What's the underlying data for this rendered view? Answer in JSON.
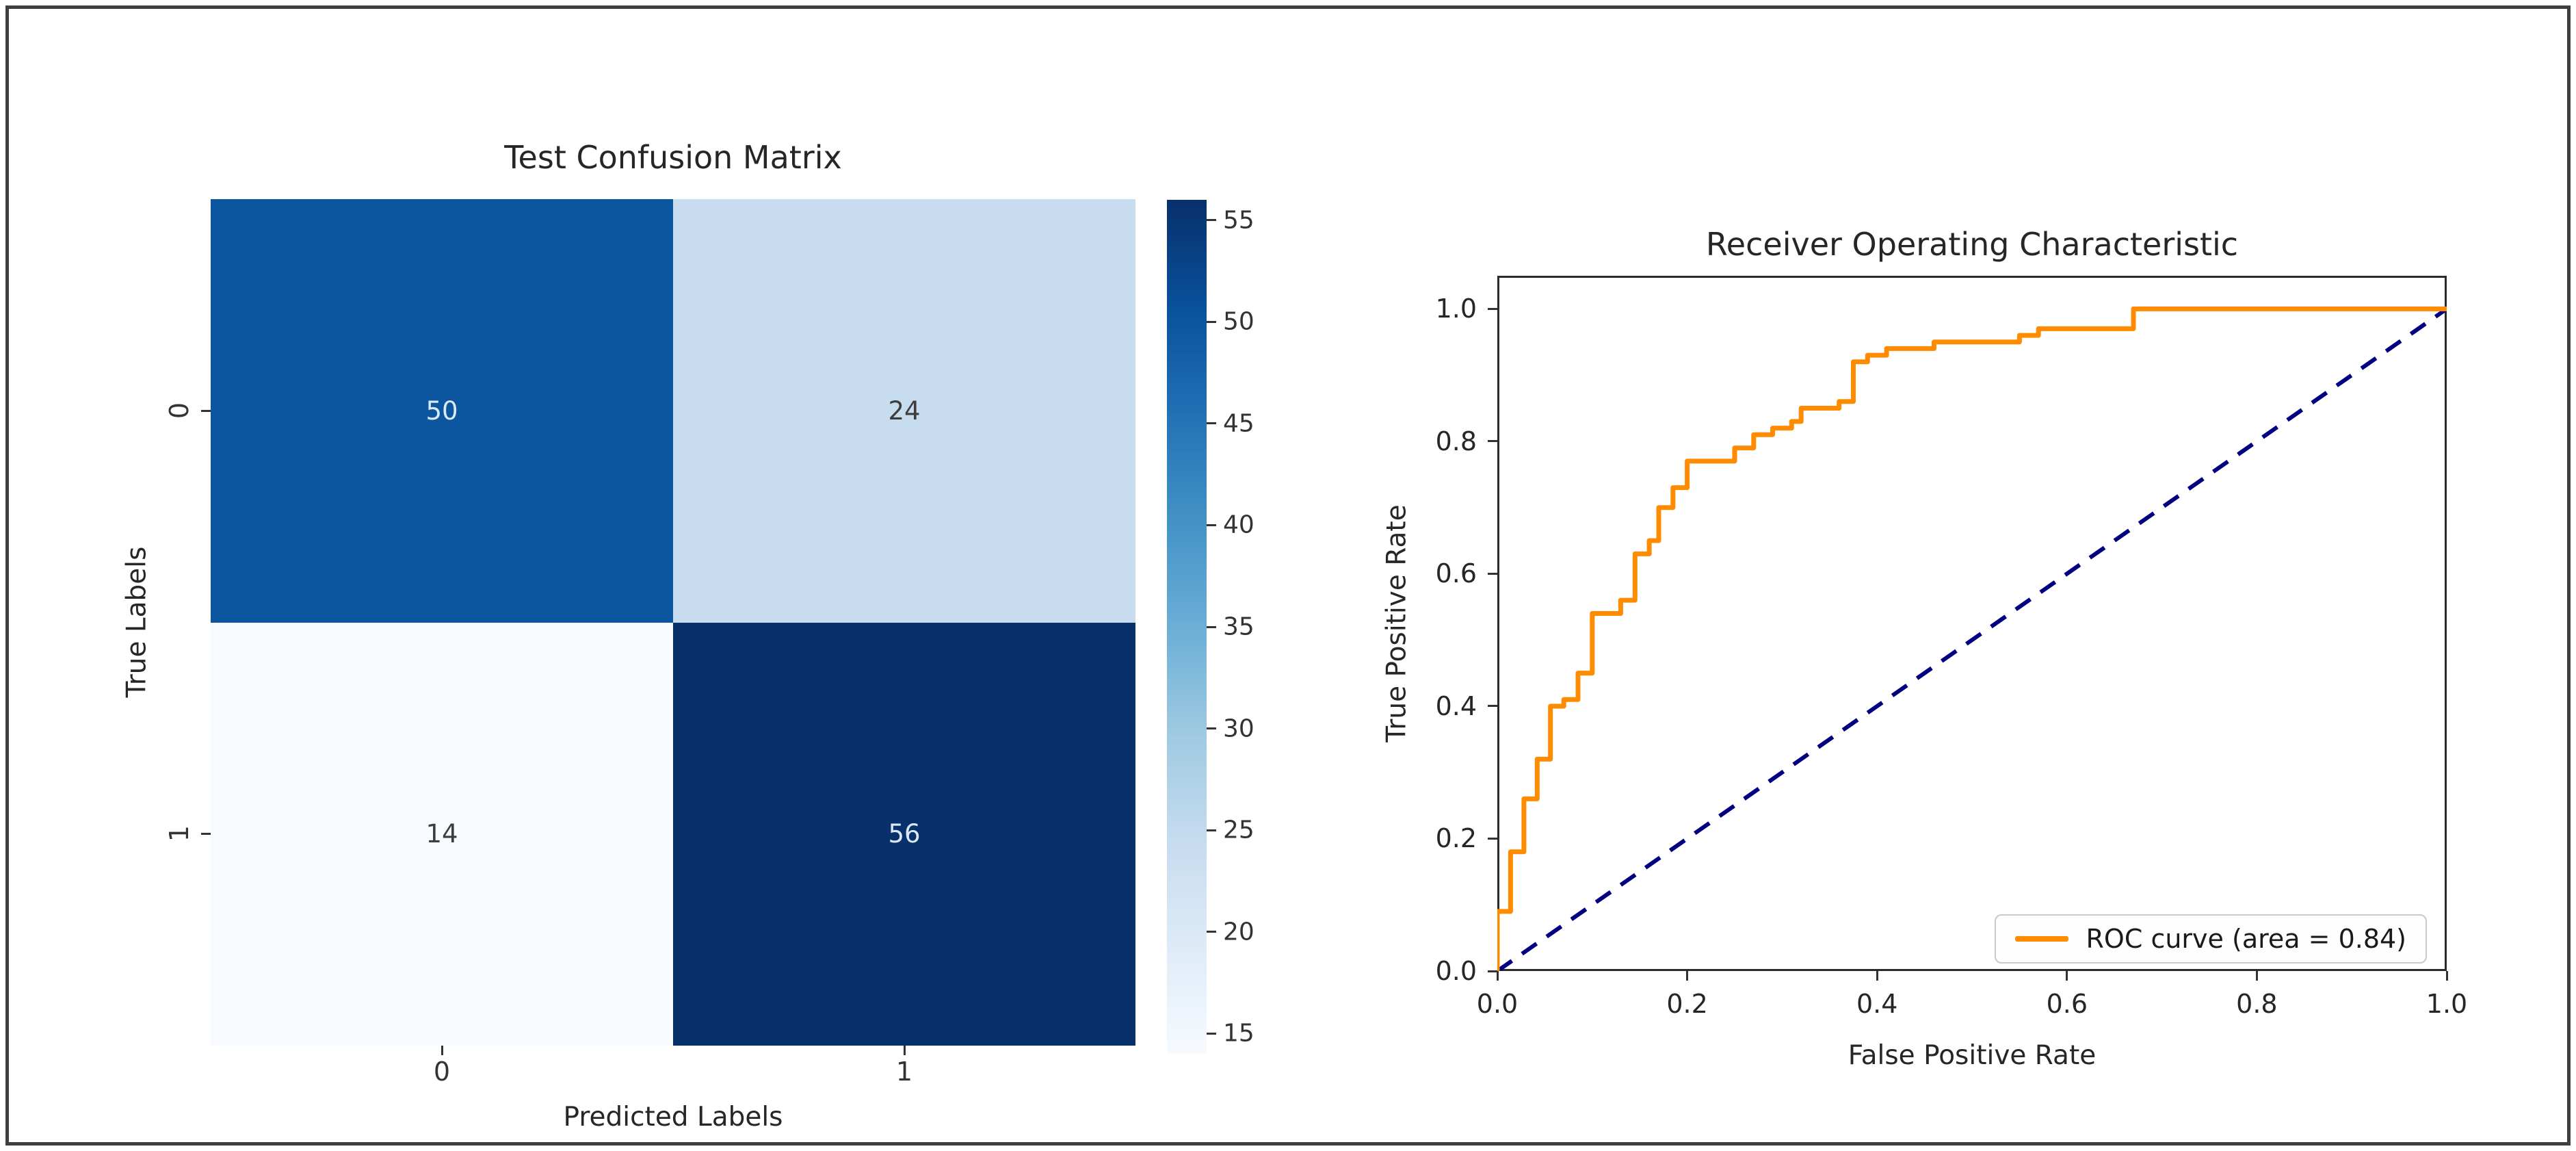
{
  "figure": {
    "background": "#ffffff",
    "border_color": "#3f3f3f"
  },
  "chart_data": [
    {
      "type": "heatmap",
      "title": "Test Confusion Matrix",
      "xlabel": "Predicted Labels",
      "ylabel": "True Labels",
      "x_categories": [
        "0",
        "1"
      ],
      "y_categories": [
        "0",
        "1"
      ],
      "values": [
        [
          50,
          24
        ],
        [
          14,
          56
        ]
      ],
      "cells": [
        {
          "value": "50",
          "bg": "#0c56a0",
          "fg": "#dbe9f6"
        },
        {
          "value": "24",
          "bg": "#c8dcf0",
          "fg": "#3d3d3d"
        },
        {
          "value": "14",
          "bg": "#f7fbff",
          "fg": "#3d3d3d"
        },
        {
          "value": "56",
          "bg": "#08306b",
          "fg": "#dbe9f6"
        }
      ],
      "colormap": "Blues",
      "grid": false,
      "colorbar": {
        "vmin": 14,
        "vmax": 56,
        "ticks": [
          15,
          20,
          25,
          30,
          35,
          40,
          45,
          50,
          55
        ],
        "gradient_stops": [
          "#f7fbff",
          "#deebf7",
          "#c6dbef",
          "#9ecae1",
          "#6baed6",
          "#4292c6",
          "#2171b5",
          "#08519c",
          "#08306b"
        ]
      }
    },
    {
      "type": "line",
      "title": "Receiver Operating Characteristic",
      "xlabel": "False Positive Rate",
      "ylabel": "True Positive Rate",
      "xlim": [
        0,
        1
      ],
      "ylim": [
        0,
        1.05
      ],
      "xticks": [
        0,
        0.2,
        0.4,
        0.6,
        0.8,
        1
      ],
      "yticks": [
        0,
        0.2,
        0.4,
        0.6,
        0.8,
        1
      ],
      "grid": false,
      "legend_position": "lower right",
      "auc": 0.84,
      "series": [
        {
          "name": "ROC curve (area = 0.84)",
          "color": "#ff8c00",
          "style": "step",
          "points": [
            [
              0,
              0
            ],
            [
              0,
              0.09
            ],
            [
              0.014,
              0.09
            ],
            [
              0.014,
              0.18
            ],
            [
              0.028,
              0.18
            ],
            [
              0.028,
              0.26
            ],
            [
              0.042,
              0.26
            ],
            [
              0.042,
              0.32
            ],
            [
              0.056,
              0.32
            ],
            [
              0.056,
              0.4
            ],
            [
              0.07,
              0.4
            ],
            [
              0.07,
              0.41
            ],
            [
              0.085,
              0.41
            ],
            [
              0.085,
              0.45
            ],
            [
              0.1,
              0.45
            ],
            [
              0.1,
              0.54
            ],
            [
              0.13,
              0.54
            ],
            [
              0.13,
              0.56
            ],
            [
              0.145,
              0.56
            ],
            [
              0.145,
              0.63
            ],
            [
              0.16,
              0.63
            ],
            [
              0.16,
              0.65
            ],
            [
              0.17,
              0.65
            ],
            [
              0.17,
              0.7
            ],
            [
              0.185,
              0.7
            ],
            [
              0.185,
              0.73
            ],
            [
              0.2,
              0.73
            ],
            [
              0.2,
              0.77
            ],
            [
              0.25,
              0.77
            ],
            [
              0.25,
              0.79
            ],
            [
              0.27,
              0.79
            ],
            [
              0.27,
              0.81
            ],
            [
              0.29,
              0.81
            ],
            [
              0.29,
              0.82
            ],
            [
              0.31,
              0.82
            ],
            [
              0.31,
              0.83
            ],
            [
              0.32,
              0.83
            ],
            [
              0.32,
              0.85
            ],
            [
              0.36,
              0.85
            ],
            [
              0.36,
              0.86
            ],
            [
              0.375,
              0.86
            ],
            [
              0.375,
              0.92
            ],
            [
              0.39,
              0.92
            ],
            [
              0.39,
              0.93
            ],
            [
              0.41,
              0.93
            ],
            [
              0.41,
              0.94
            ],
            [
              0.46,
              0.94
            ],
            [
              0.46,
              0.95
            ],
            [
              0.55,
              0.95
            ],
            [
              0.55,
              0.96
            ],
            [
              0.57,
              0.96
            ],
            [
              0.57,
              0.97
            ],
            [
              0.67,
              0.97
            ],
            [
              0.67,
              1
            ],
            [
              1,
              1
            ]
          ]
        },
        {
          "name": "diagonal-reference",
          "color": "#000080",
          "style": "dashed",
          "points": [
            [
              0,
              0
            ],
            [
              1,
              1
            ]
          ]
        }
      ]
    }
  ]
}
